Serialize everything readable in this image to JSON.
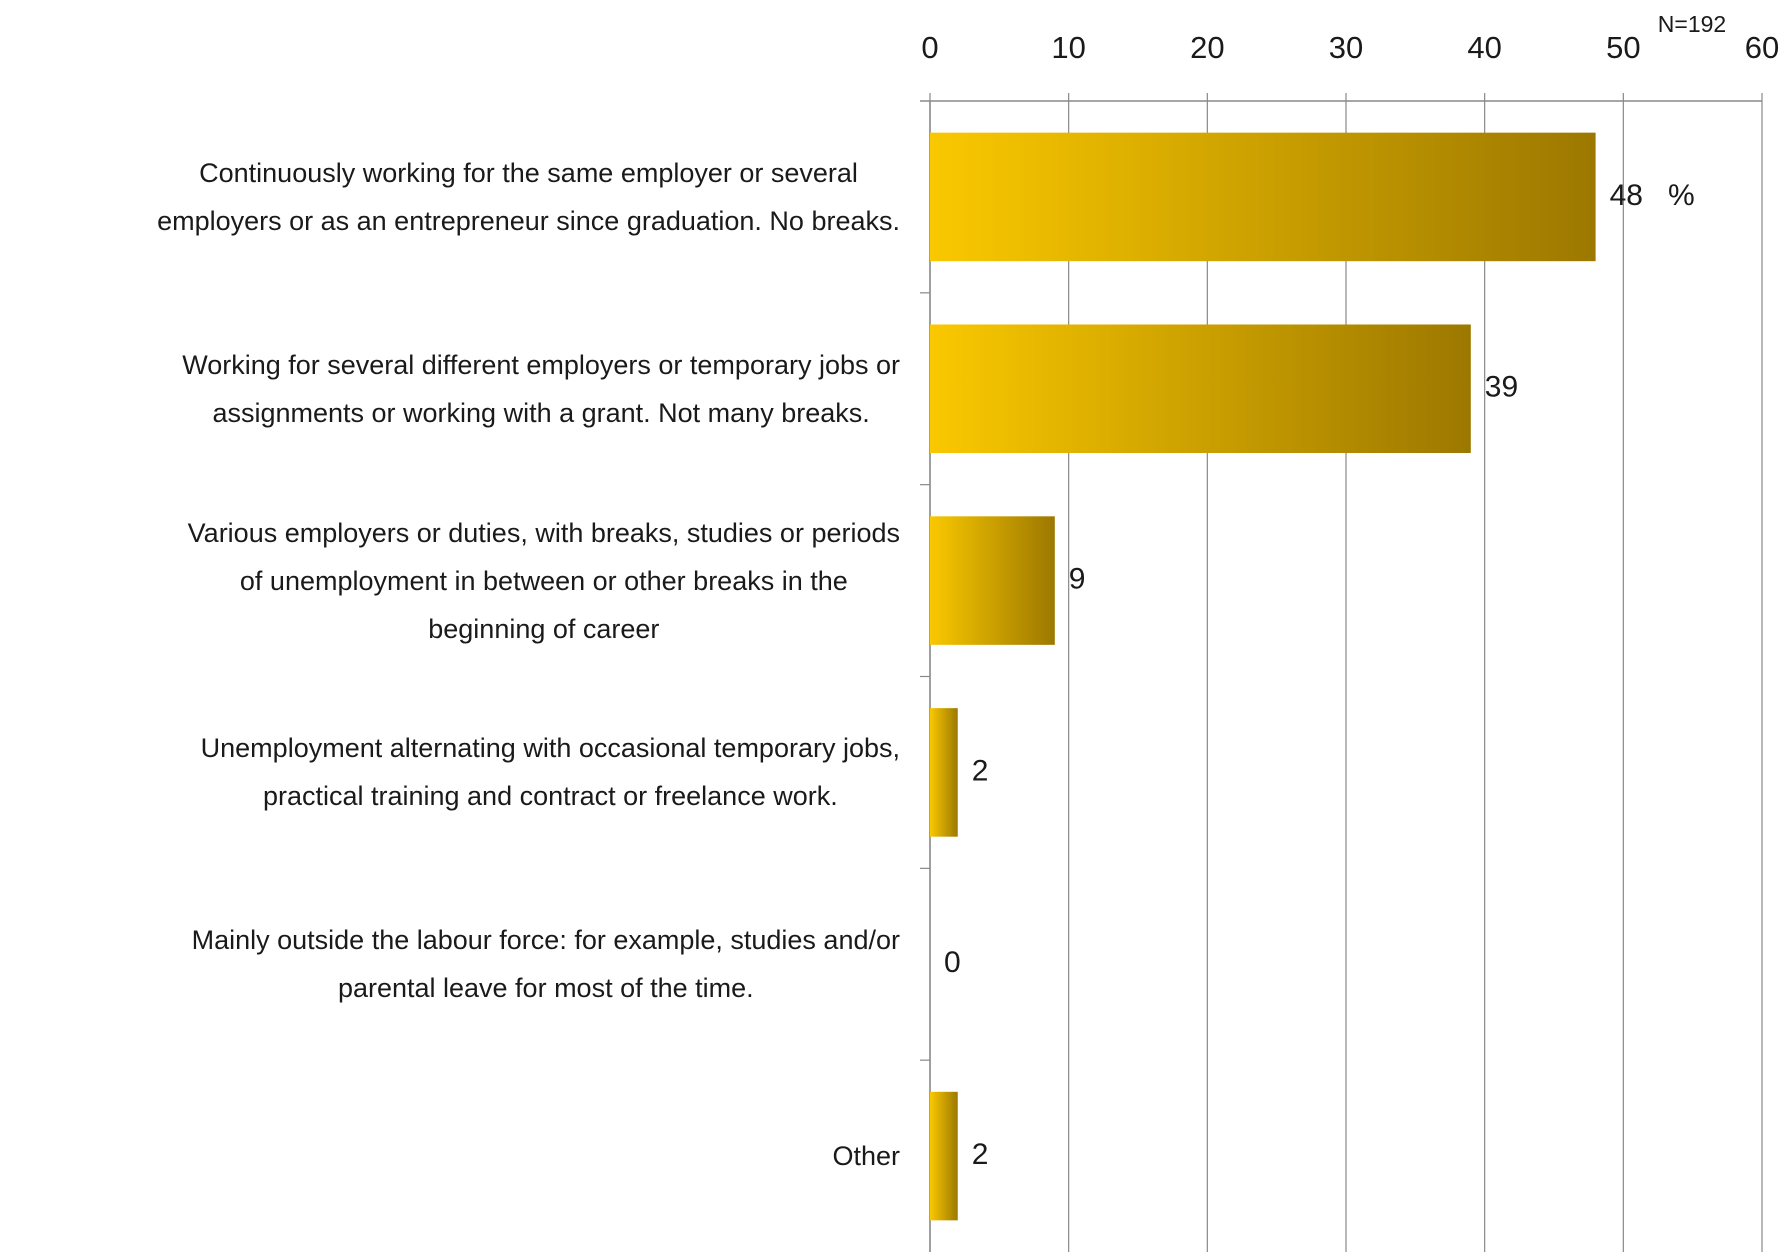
{
  "chart_data": {
    "type": "bar",
    "orientation": "horizontal",
    "annotation": "N=192",
    "categories": [
      "Continuously working for the same employer or several\nemployers or as an entrepreneur since graduation. No breaks.",
      "Working for several different employers or temporary jobs or\nassignments or working with a grant. Not many breaks.",
      "Various employers or duties, with breaks, studies or periods\nof unemployment in between or other breaks in the\nbeginning of career",
      "Unemployment alternating with occasional temporary jobs,\npractical training and contract or freelance work.",
      "Mainly outside the labour force: for example, studies and/or\nparental leave for most of the time.",
      "Other"
    ],
    "values": [
      48,
      39,
      9,
      2,
      0,
      2
    ],
    "value_labels": [
      "48   %",
      "39",
      "9",
      "2",
      "0",
      "2"
    ],
    "color": [
      "#fac800",
      "#9c7800"
    ],
    "xlim": [
      0,
      60
    ],
    "xticks": [
      0,
      10,
      20,
      30,
      40,
      50,
      60
    ],
    "grid": true
  }
}
